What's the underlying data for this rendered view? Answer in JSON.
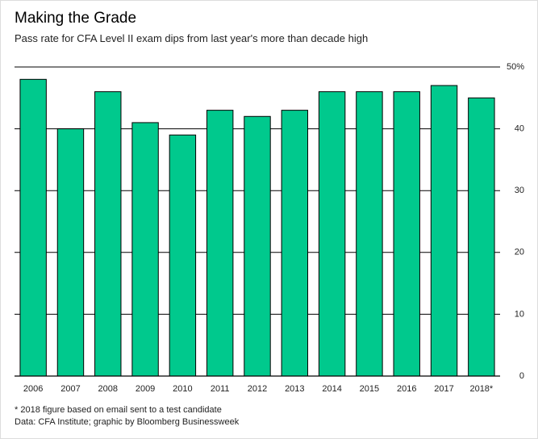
{
  "chart_data": {
    "type": "bar",
    "title": "Making the Grade",
    "subtitle": "Pass rate for CFA Level II exam dips from last year's more than decade high",
    "categories": [
      "2006",
      "2007",
      "2008",
      "2009",
      "2010",
      "2011",
      "2012",
      "2013",
      "2014",
      "2015",
      "2016",
      "2017",
      "2018*"
    ],
    "values": [
      48,
      40,
      46,
      41,
      39,
      43,
      42,
      43,
      46,
      46,
      46,
      47,
      45
    ],
    "color": "#00c98d",
    "ylim": [
      0,
      50
    ],
    "yticks": [
      0,
      10,
      20,
      30,
      40,
      {
        "value": 50,
        "label": "50%"
      }
    ],
    "grid": true,
    "footnote": "* 2018 figure based on email sent to a test candidate",
    "source": "Data: CFA Institute; graphic by Bloomberg Businessweek"
  }
}
